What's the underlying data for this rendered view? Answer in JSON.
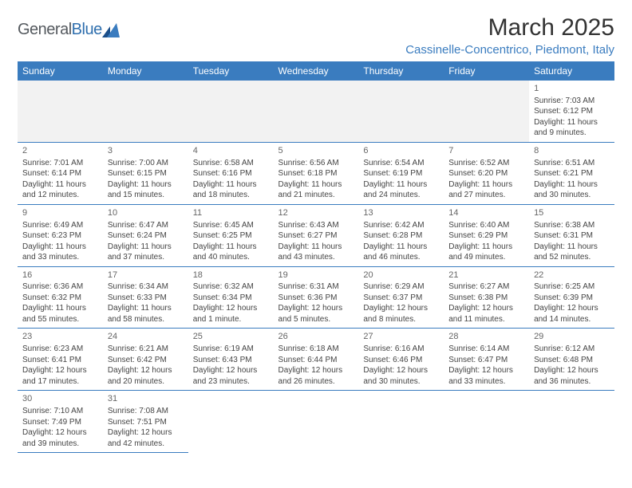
{
  "logo": {
    "word1": "General",
    "word2": "Blue",
    "mark_color": "#2f6fae",
    "text_color_main": "#555a5f",
    "text_color_accent": "#2f6fae"
  },
  "title": "March 2025",
  "location": "Cassinelle-Concentrico, Piedmont, Italy",
  "day_headers": [
    "Sunday",
    "Monday",
    "Tuesday",
    "Wednesday",
    "Thursday",
    "Friday",
    "Saturday"
  ],
  "colors": {
    "header_bg": "#3a7cbf",
    "header_fg": "#ffffff",
    "cell_border": "#3a7cbf",
    "gray_bg": "#f2f2f2",
    "location_fg": "#3a7cbf"
  },
  "weeks": [
    [
      null,
      null,
      null,
      null,
      null,
      null,
      {
        "n": "1",
        "sunrise": "Sunrise: 7:03 AM",
        "sunset": "Sunset: 6:12 PM",
        "daylight": "Daylight: 11 hours and 9 minutes."
      }
    ],
    [
      {
        "n": "2",
        "sunrise": "Sunrise: 7:01 AM",
        "sunset": "Sunset: 6:14 PM",
        "daylight": "Daylight: 11 hours and 12 minutes."
      },
      {
        "n": "3",
        "sunrise": "Sunrise: 7:00 AM",
        "sunset": "Sunset: 6:15 PM",
        "daylight": "Daylight: 11 hours and 15 minutes."
      },
      {
        "n": "4",
        "sunrise": "Sunrise: 6:58 AM",
        "sunset": "Sunset: 6:16 PM",
        "daylight": "Daylight: 11 hours and 18 minutes."
      },
      {
        "n": "5",
        "sunrise": "Sunrise: 6:56 AM",
        "sunset": "Sunset: 6:18 PM",
        "daylight": "Daylight: 11 hours and 21 minutes."
      },
      {
        "n": "6",
        "sunrise": "Sunrise: 6:54 AM",
        "sunset": "Sunset: 6:19 PM",
        "daylight": "Daylight: 11 hours and 24 minutes."
      },
      {
        "n": "7",
        "sunrise": "Sunrise: 6:52 AM",
        "sunset": "Sunset: 6:20 PM",
        "daylight": "Daylight: 11 hours and 27 minutes."
      },
      {
        "n": "8",
        "sunrise": "Sunrise: 6:51 AM",
        "sunset": "Sunset: 6:21 PM",
        "daylight": "Daylight: 11 hours and 30 minutes."
      }
    ],
    [
      {
        "n": "9",
        "sunrise": "Sunrise: 6:49 AM",
        "sunset": "Sunset: 6:23 PM",
        "daylight": "Daylight: 11 hours and 33 minutes."
      },
      {
        "n": "10",
        "sunrise": "Sunrise: 6:47 AM",
        "sunset": "Sunset: 6:24 PM",
        "daylight": "Daylight: 11 hours and 37 minutes."
      },
      {
        "n": "11",
        "sunrise": "Sunrise: 6:45 AM",
        "sunset": "Sunset: 6:25 PM",
        "daylight": "Daylight: 11 hours and 40 minutes."
      },
      {
        "n": "12",
        "sunrise": "Sunrise: 6:43 AM",
        "sunset": "Sunset: 6:27 PM",
        "daylight": "Daylight: 11 hours and 43 minutes."
      },
      {
        "n": "13",
        "sunrise": "Sunrise: 6:42 AM",
        "sunset": "Sunset: 6:28 PM",
        "daylight": "Daylight: 11 hours and 46 minutes."
      },
      {
        "n": "14",
        "sunrise": "Sunrise: 6:40 AM",
        "sunset": "Sunset: 6:29 PM",
        "daylight": "Daylight: 11 hours and 49 minutes."
      },
      {
        "n": "15",
        "sunrise": "Sunrise: 6:38 AM",
        "sunset": "Sunset: 6:31 PM",
        "daylight": "Daylight: 11 hours and 52 minutes."
      }
    ],
    [
      {
        "n": "16",
        "sunrise": "Sunrise: 6:36 AM",
        "sunset": "Sunset: 6:32 PM",
        "daylight": "Daylight: 11 hours and 55 minutes."
      },
      {
        "n": "17",
        "sunrise": "Sunrise: 6:34 AM",
        "sunset": "Sunset: 6:33 PM",
        "daylight": "Daylight: 11 hours and 58 minutes."
      },
      {
        "n": "18",
        "sunrise": "Sunrise: 6:32 AM",
        "sunset": "Sunset: 6:34 PM",
        "daylight": "Daylight: 12 hours and 1 minute."
      },
      {
        "n": "19",
        "sunrise": "Sunrise: 6:31 AM",
        "sunset": "Sunset: 6:36 PM",
        "daylight": "Daylight: 12 hours and 5 minutes."
      },
      {
        "n": "20",
        "sunrise": "Sunrise: 6:29 AM",
        "sunset": "Sunset: 6:37 PM",
        "daylight": "Daylight: 12 hours and 8 minutes."
      },
      {
        "n": "21",
        "sunrise": "Sunrise: 6:27 AM",
        "sunset": "Sunset: 6:38 PM",
        "daylight": "Daylight: 12 hours and 11 minutes."
      },
      {
        "n": "22",
        "sunrise": "Sunrise: 6:25 AM",
        "sunset": "Sunset: 6:39 PM",
        "daylight": "Daylight: 12 hours and 14 minutes."
      }
    ],
    [
      {
        "n": "23",
        "sunrise": "Sunrise: 6:23 AM",
        "sunset": "Sunset: 6:41 PM",
        "daylight": "Daylight: 12 hours and 17 minutes."
      },
      {
        "n": "24",
        "sunrise": "Sunrise: 6:21 AM",
        "sunset": "Sunset: 6:42 PM",
        "daylight": "Daylight: 12 hours and 20 minutes."
      },
      {
        "n": "25",
        "sunrise": "Sunrise: 6:19 AM",
        "sunset": "Sunset: 6:43 PM",
        "daylight": "Daylight: 12 hours and 23 minutes."
      },
      {
        "n": "26",
        "sunrise": "Sunrise: 6:18 AM",
        "sunset": "Sunset: 6:44 PM",
        "daylight": "Daylight: 12 hours and 26 minutes."
      },
      {
        "n": "27",
        "sunrise": "Sunrise: 6:16 AM",
        "sunset": "Sunset: 6:46 PM",
        "daylight": "Daylight: 12 hours and 30 minutes."
      },
      {
        "n": "28",
        "sunrise": "Sunrise: 6:14 AM",
        "sunset": "Sunset: 6:47 PM",
        "daylight": "Daylight: 12 hours and 33 minutes."
      },
      {
        "n": "29",
        "sunrise": "Sunrise: 6:12 AM",
        "sunset": "Sunset: 6:48 PM",
        "daylight": "Daylight: 12 hours and 36 minutes."
      }
    ],
    [
      {
        "n": "30",
        "sunrise": "Sunrise: 7:10 AM",
        "sunset": "Sunset: 7:49 PM",
        "daylight": "Daylight: 12 hours and 39 minutes."
      },
      {
        "n": "31",
        "sunrise": "Sunrise: 7:08 AM",
        "sunset": "Sunset: 7:51 PM",
        "daylight": "Daylight: 12 hours and 42 minutes."
      },
      null,
      null,
      null,
      null,
      null
    ]
  ]
}
